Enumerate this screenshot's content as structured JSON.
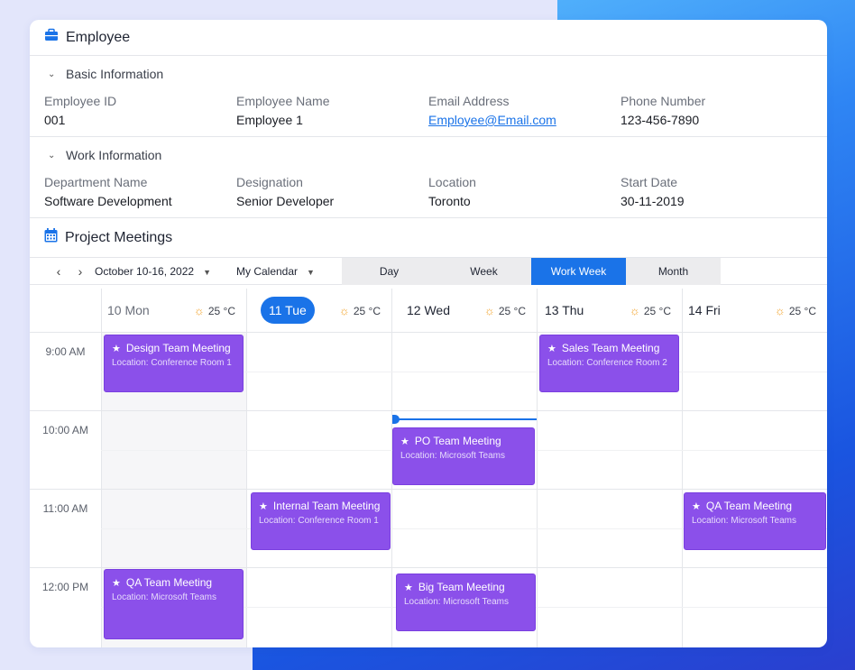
{
  "employee": {
    "title": "Employee",
    "basic": {
      "label": "Basic Information",
      "fields": [
        {
          "label": "Employee ID",
          "value": "001"
        },
        {
          "label": "Employee Name",
          "value": "Employee 1"
        },
        {
          "label": "Email Address",
          "value": "Employee@Email.com"
        },
        {
          "label": "Phone Number",
          "value": "123-456-7890"
        }
      ]
    },
    "work": {
      "label": "Work Information",
      "fields": [
        {
          "label": "Department Name",
          "value": "Software Development"
        },
        {
          "label": "Designation",
          "value": "Senior Developer"
        },
        {
          "label": "Location",
          "value": "Toronto"
        },
        {
          "label": "Start Date",
          "value": "30-11-2019"
        }
      ]
    }
  },
  "meetings": {
    "title": "Project Meetings",
    "date_range": "October 10-16, 2022",
    "calendar": "My Calendar",
    "views": [
      "Day",
      "Week",
      "Work Week",
      "Month"
    ],
    "active_view": "Work Week",
    "days": [
      {
        "label": "10 Mon",
        "temp": "25 °C"
      },
      {
        "label": "11 Tue",
        "temp": "25 °C"
      },
      {
        "label": "12 Wed",
        "temp": "25 °C"
      },
      {
        "label": "13 Thu",
        "temp": "25 °C"
      },
      {
        "label": "14 Fri",
        "temp": "25 °C"
      }
    ],
    "times": [
      "9:00 AM",
      "10:00 AM",
      "11:00 AM",
      "12:00 PM"
    ],
    "events": [
      {
        "title": "Design Team Meeting",
        "location": "Location: Conference Room 1"
      },
      {
        "title": "Sales Team Meeting",
        "location": "Location: Conference Room 2"
      },
      {
        "title": "PO Team Meeting",
        "location": "Location: Microsoft Teams"
      },
      {
        "title": "Internal Team Meeting",
        "location": "Location: Conference Room 1"
      },
      {
        "title": "QA Team Meeting",
        "location": "Location: Microsoft Teams"
      },
      {
        "title": "QA Team Meeting",
        "location": "Location: Microsoft Teams"
      },
      {
        "title": "Big Team Meeting",
        "location": "Location: Microsoft Teams"
      }
    ],
    "colors": {
      "event": "#8b50ea",
      "accent": "#1a73e8"
    }
  }
}
